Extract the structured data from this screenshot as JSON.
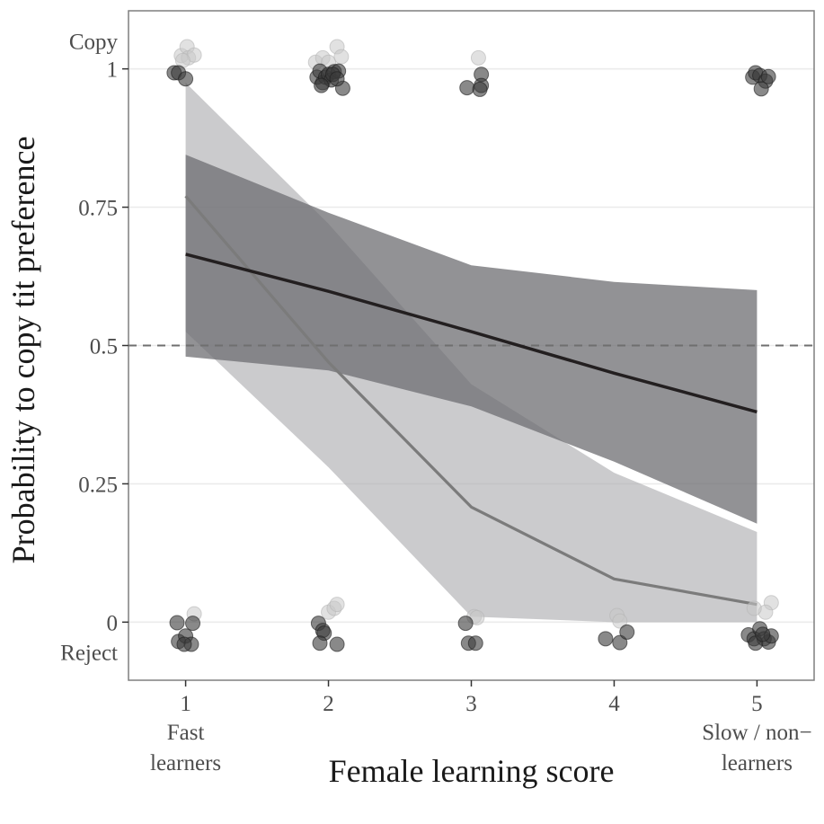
{
  "chart_data": {
    "type": "line",
    "title": "",
    "xlabel": "Female learning score",
    "ylabel": "Probability to copy tit preference",
    "xlim": [
      0.6,
      5.4
    ],
    "ylim": [
      -0.105,
      1.105
    ],
    "x_ticks": [
      1,
      2,
      3,
      4,
      5
    ],
    "x_tick_labels": [
      "1",
      "2",
      "3",
      "4",
      "5"
    ],
    "y_ticks": [
      0,
      0.25,
      0.5,
      0.75,
      1
    ],
    "y_tick_labels": [
      "0",
      "0.25",
      "0.5",
      "0.75",
      "1"
    ],
    "x_annotations": [
      {
        "x": 1,
        "text": [
          "Fast",
          "learners"
        ]
      },
      {
        "x": 5,
        "text": [
          "Slow / non−",
          "learners"
        ]
      }
    ],
    "y_annotations": [
      {
        "y": 1,
        "text": "Copy",
        "position": "above"
      },
      {
        "y": 0,
        "text": "Reject",
        "position": "below"
      }
    ],
    "reference_line": {
      "y": 0.5,
      "style": "dashed"
    },
    "grid": true,
    "series": [
      {
        "x": [
          1,
          2,
          3,
          4,
          5
        ],
        "y": [
          0.665,
          0.598,
          0.525,
          0.45,
          0.38
        ],
        "ci_lower": [
          0.48,
          0.455,
          0.39,
          0.29,
          0.178
        ],
        "ci_upper": [
          0.845,
          0.74,
          0.645,
          0.615,
          0.6
        ],
        "line_color": "#231f20",
        "band_color": "#6e6e72",
        "band_opacity": 0.75
      },
      {
        "x": [
          1,
          2,
          3,
          4,
          5
        ],
        "y": [
          0.77,
          0.47,
          0.208,
          0.078,
          0.032
        ],
        "ci_lower": [
          0.525,
          0.28,
          0.01,
          0.0,
          0.0
        ],
        "ci_upper": [
          0.975,
          0.72,
          0.43,
          0.27,
          0.163
        ],
        "line_color": "#7b7b7b",
        "band_color": "#a8a9ac",
        "band_opacity": 0.6
      }
    ],
    "points_dark": [
      {
        "x": 0.92,
        "y": 0.993
      },
      {
        "x": 0.95,
        "y": 0.993
      },
      {
        "x": 1.0,
        "y": 0.982
      },
      {
        "x": 0.94,
        "y": -0.001
      },
      {
        "x": 1.05,
        "y": -0.002
      },
      {
        "x": 0.95,
        "y": -0.035
      },
      {
        "x": 1.0,
        "y": -0.025
      },
      {
        "x": 1.04,
        "y": -0.04
      },
      {
        "x": 0.99,
        "y": -0.04
      },
      {
        "x": 1.92,
        "y": 0.985
      },
      {
        "x": 1.94,
        "y": 0.996
      },
      {
        "x": 1.96,
        "y": 0.975
      },
      {
        "x": 1.98,
        "y": 0.985
      },
      {
        "x": 2.0,
        "y": 0.99
      },
      {
        "x": 2.02,
        "y": 0.98
      },
      {
        "x": 2.04,
        "y": 0.995
      },
      {
        "x": 2.07,
        "y": 0.996
      },
      {
        "x": 2.1,
        "y": 0.965
      },
      {
        "x": 2.03,
        "y": 0.99
      },
      {
        "x": 1.95,
        "y": 0.97
      },
      {
        "x": 2.06,
        "y": 0.982
      },
      {
        "x": 1.93,
        "y": -0.002
      },
      {
        "x": 1.96,
        "y": -0.015
      },
      {
        "x": 1.97,
        "y": -0.02
      },
      {
        "x": 1.94,
        "y": -0.038
      },
      {
        "x": 2.06,
        "y": -0.04
      },
      {
        "x": 2.97,
        "y": 0.966
      },
      {
        "x": 3.07,
        "y": 0.99
      },
      {
        "x": 3.07,
        "y": 0.97
      },
      {
        "x": 3.06,
        "y": 0.963
      },
      {
        "x": 2.96,
        "y": -0.002
      },
      {
        "x": 2.98,
        "y": -0.038
      },
      {
        "x": 3.03,
        "y": -0.038
      },
      {
        "x": 3.94,
        "y": -0.03
      },
      {
        "x": 4.04,
        "y": -0.037
      },
      {
        "x": 4.09,
        "y": -0.018
      },
      {
        "x": 4.97,
        "y": 0.985
      },
      {
        "x": 4.99,
        "y": 0.993
      },
      {
        "x": 5.02,
        "y": 0.988
      },
      {
        "x": 5.06,
        "y": 0.978
      },
      {
        "x": 5.03,
        "y": 0.964
      },
      {
        "x": 5.08,
        "y": 0.986
      },
      {
        "x": 4.94,
        "y": -0.023
      },
      {
        "x": 4.98,
        "y": -0.03
      },
      {
        "x": 5.02,
        "y": -0.012
      },
      {
        "x": 5.05,
        "y": -0.03
      },
      {
        "x": 5.08,
        "y": -0.036
      },
      {
        "x": 5.1,
        "y": -0.025
      },
      {
        "x": 4.99,
        "y": -0.038
      },
      {
        "x": 5.04,
        "y": -0.022
      }
    ],
    "points_light": [
      {
        "x": 0.97,
        "y": 1.024
      },
      {
        "x": 1.01,
        "y": 1.04
      },
      {
        "x": 1.02,
        "y": 1.02
      },
      {
        "x": 1.06,
        "y": 1.025
      },
      {
        "x": 0.98,
        "y": 1.015
      },
      {
        "x": 1.06,
        "y": 0.015
      },
      {
        "x": 1.91,
        "y": 1.012
      },
      {
        "x": 1.96,
        "y": 1.02
      },
      {
        "x": 2.0,
        "y": 1.012
      },
      {
        "x": 2.06,
        "y": 1.04
      },
      {
        "x": 2.09,
        "y": 1.022
      },
      {
        "x": 2.0,
        "y": 0.018
      },
      {
        "x": 2.04,
        "y": 0.025
      },
      {
        "x": 2.06,
        "y": 0.032
      },
      {
        "x": 3.05,
        "y": 1.02
      },
      {
        "x": 3.02,
        "y": 0.01
      },
      {
        "x": 3.04,
        "y": 0.008
      },
      {
        "x": 4.02,
        "y": 0.012
      },
      {
        "x": 4.04,
        "y": 0.002
      },
      {
        "x": 5.1,
        "y": 0.035
      },
      {
        "x": 5.06,
        "y": 0.018
      },
      {
        "x": 4.98,
        "y": 0.025
      }
    ]
  }
}
